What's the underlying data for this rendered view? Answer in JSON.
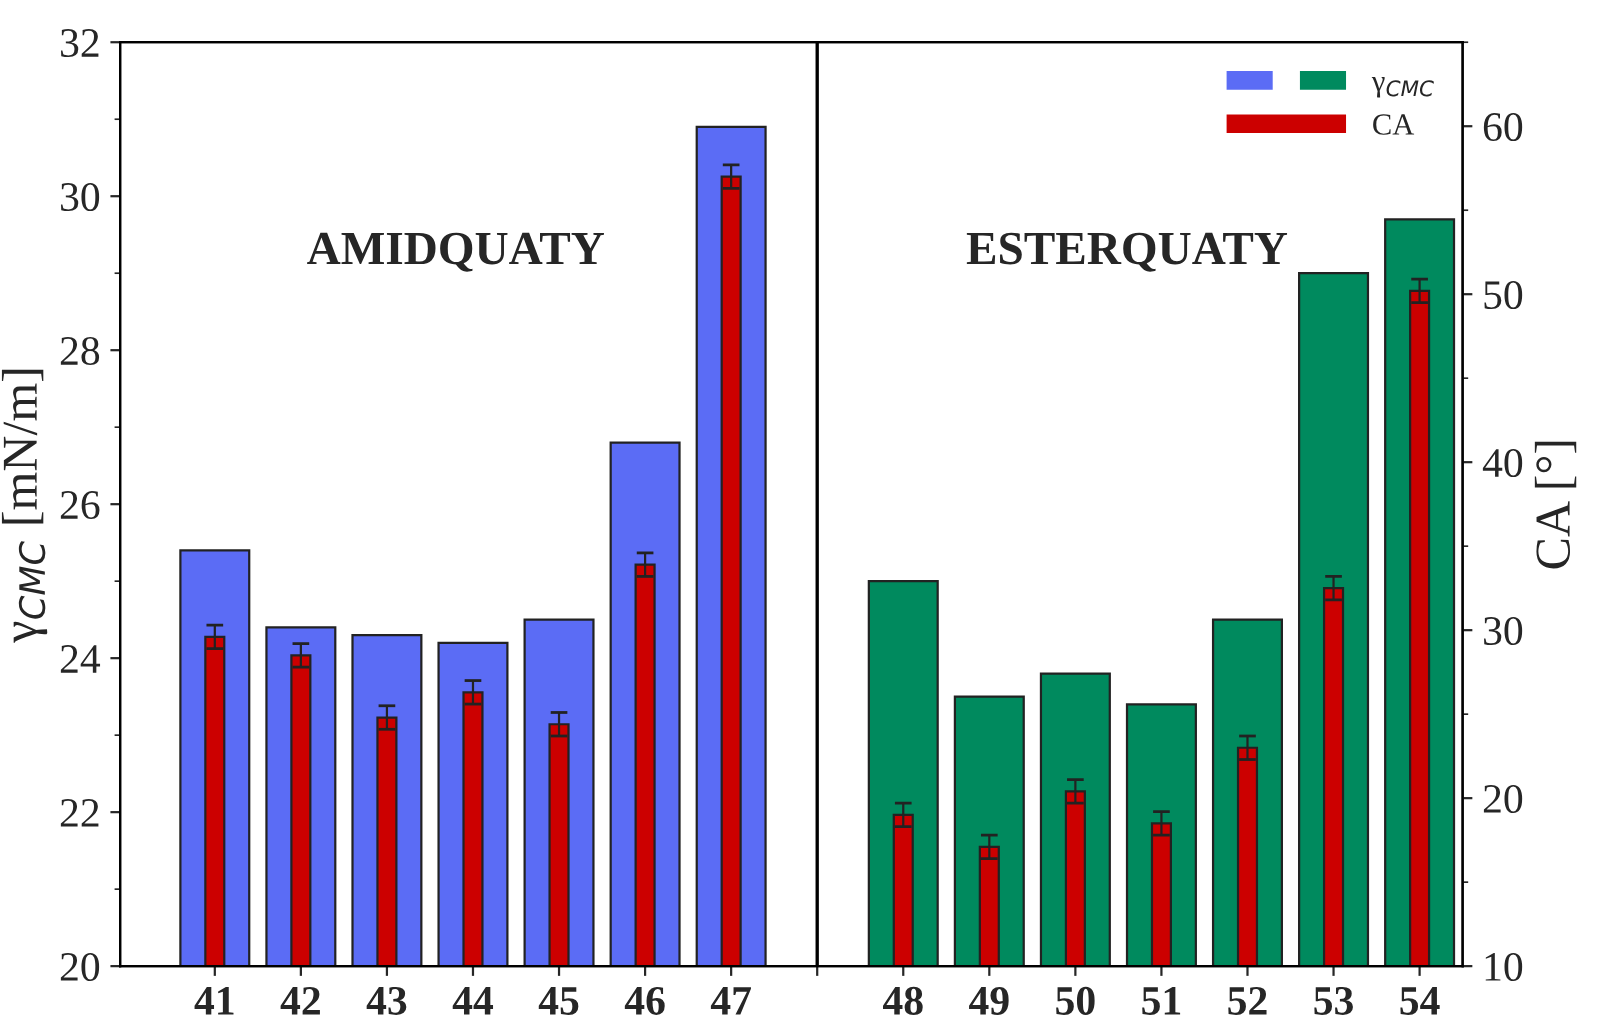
{
  "chart_data": {
    "type": "bar",
    "ylabel": "γ$_{CMC}$ [mN/m]",
    "y2label": "CA [°]",
    "categories": [
      "41",
      "42",
      "43",
      "44",
      "45",
      "46",
      "47",
      null,
      "48",
      "49",
      "50",
      "51",
      "52",
      "53",
      "54"
    ],
    "series": [
      {
        "name": "γ$_{CMC}$",
        "colors": [
          "#5b6cf5",
          "#5b6cf5",
          "#5b6cf5",
          "#5b6cf5",
          "#5b6cf5",
          "#5b6cf5",
          "#5b6cf5",
          null,
          "#008a5e",
          "#008a5e",
          "#008a5e",
          "#008a5e",
          "#008a5e",
          "#008a5e",
          "#008a5e"
        ],
        "values": [
          25.4,
          24.4,
          24.3,
          24.2,
          24.5,
          26.8,
          30.9,
          null,
          25.0,
          23.5,
          23.8,
          23.4,
          24.5,
          29.0,
          29.7
        ]
      },
      {
        "name": "CA",
        "color": "#cc0000",
        "axis": "y2",
        "values": [
          29.6,
          28.5,
          24.8,
          26.3,
          24.4,
          33.9,
          57.0,
          null,
          19.0,
          17.1,
          20.4,
          18.5,
          23.0,
          32.5,
          50.2
        ],
        "errors": [
          0.7,
          0.7,
          0.7,
          0.7,
          0.7,
          0.7,
          0.7,
          null,
          0.7,
          0.7,
          0.7,
          0.7,
          0.7,
          0.7,
          0.7
        ]
      }
    ],
    "ylim": [
      20,
      32
    ],
    "yticks": [
      20,
      22,
      24,
      26,
      28,
      30,
      32
    ],
    "y2lim": [
      10,
      65
    ],
    "y2ticks": [
      10,
      20,
      30,
      40,
      50,
      60
    ],
    "annotations": [
      "AMIDQUATY",
      "ESTERQUATY"
    ],
    "legend": "top right"
  }
}
